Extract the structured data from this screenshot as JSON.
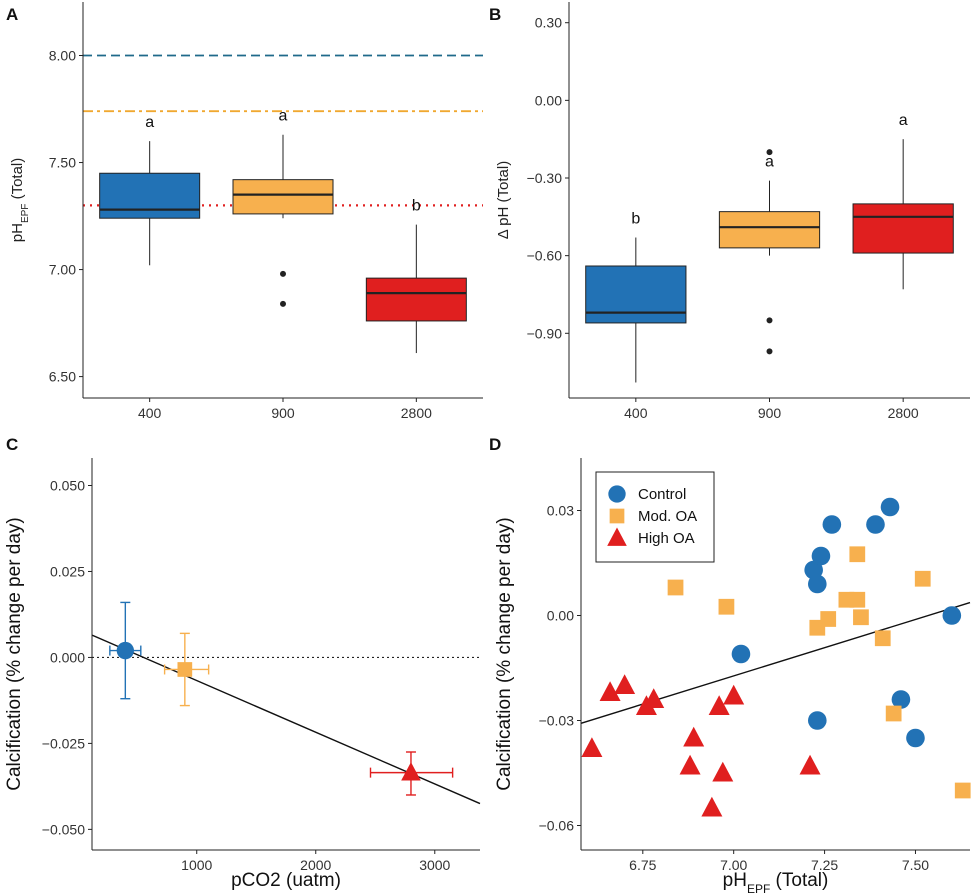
{
  "colors": {
    "control": "#2272b5",
    "mod_oa": "#f7b04e",
    "high_oa": "#e01f1f",
    "ambient_line": "#1f6a8a",
    "mod_line": "#f0a830",
    "high_line": "#e02020"
  },
  "chart_data": [
    {
      "panel": "A",
      "type": "box",
      "ylabel": "pH",
      "ylabel_sub": "EPF",
      "ylabel_suffix": " (Total)",
      "ylim": [
        6.4,
        8.25
      ],
      "yticks": [
        6.5,
        7.0,
        7.5,
        8.0
      ],
      "ytick_labels": [
        "6.50",
        "7.00",
        "7.50",
        "8.00"
      ],
      "categories": [
        "400",
        "900",
        "2800"
      ],
      "boxes": [
        {
          "cat": "400",
          "q1": 7.24,
          "median": 7.28,
          "q3": 7.45,
          "whisker_low": 7.02,
          "whisker_high": 7.6,
          "outliers": [],
          "color": "control",
          "letter": "a"
        },
        {
          "cat": "900",
          "q1": 7.26,
          "median": 7.35,
          "q3": 7.42,
          "whisker_low": 7.24,
          "whisker_high": 7.63,
          "outliers": [
            6.98,
            6.84
          ],
          "color": "mod_oa",
          "letter": "a"
        },
        {
          "cat": "2800",
          "q1": 6.76,
          "median": 6.89,
          "q3": 6.96,
          "whisker_low": 6.61,
          "whisker_high": 7.21,
          "outliers": [],
          "color": "high_oa",
          "letter": "b"
        }
      ],
      "reference_lines": [
        {
          "y": 8.0,
          "style": "dashed",
          "color": "ambient_line"
        },
        {
          "y": 7.74,
          "style": "dashdot",
          "color": "mod_line"
        },
        {
          "y": 7.3,
          "style": "dotted",
          "color": "high_line"
        }
      ]
    },
    {
      "panel": "B",
      "type": "box",
      "ylabel": "Δ pH (Total)",
      "ylim": [
        -1.15,
        0.38
      ],
      "yticks": [
        -0.9,
        -0.6,
        -0.3,
        0.0,
        0.3
      ],
      "ytick_labels": [
        "−0.90",
        "−0.60",
        "−0.30",
        "0.00",
        "0.30"
      ],
      "categories": [
        "400",
        "900",
        "2800"
      ],
      "boxes": [
        {
          "cat": "400",
          "q1": -0.86,
          "median": -0.82,
          "q3": -0.64,
          "whisker_low": -1.09,
          "whisker_high": -0.53,
          "outliers": [],
          "color": "control",
          "letter": "b"
        },
        {
          "cat": "900",
          "q1": -0.57,
          "median": -0.49,
          "q3": -0.43,
          "whisker_low": -0.6,
          "whisker_high": -0.31,
          "outliers": [
            -0.2,
            -0.85,
            -0.97
          ],
          "color": "mod_oa",
          "letter": "a"
        },
        {
          "cat": "2800",
          "q1": -0.59,
          "median": -0.45,
          "q3": -0.4,
          "whisker_low": -0.73,
          "whisker_high": -0.15,
          "outliers": [],
          "color": "high_oa",
          "letter": "a"
        }
      ]
    },
    {
      "panel": "C",
      "type": "scatter",
      "xlabel": "pCO2 (uatm)",
      "ylabel": "Calcification (% change per day)",
      "xlim": [
        120,
        3380
      ],
      "ylim": [
        -0.056,
        0.058
      ],
      "xticks": [
        1000,
        2000,
        3000
      ],
      "xtick_labels": [
        "1000",
        "2000",
        "3000"
      ],
      "yticks": [
        -0.05,
        -0.025,
        0.0,
        0.025,
        0.05
      ],
      "ytick_labels": [
        "−0.050",
        "−0.025",
        "0.000",
        "0.025",
        "0.050"
      ],
      "points": [
        {
          "x": 400,
          "y": 0.002,
          "xerr_low": 270,
          "xerr_high": 530,
          "yerr_low": -0.012,
          "yerr_high": 0.016,
          "color": "control",
          "shape": "circle"
        },
        {
          "x": 900,
          "y": -0.0035,
          "xerr_low": 730,
          "xerr_high": 1100,
          "yerr_low": -0.014,
          "yerr_high": 0.007,
          "color": "mod_oa",
          "shape": "square"
        },
        {
          "x": 2800,
          "y": -0.0335,
          "xerr_low": 2460,
          "xerr_high": 3150,
          "yerr_low": -0.04,
          "yerr_high": -0.0275,
          "color": "high_oa",
          "shape": "triangle"
        }
      ],
      "hline_y": 0.0,
      "fit_line": [
        {
          "x": 120,
          "y": 0.0065
        },
        {
          "x": 3380,
          "y": -0.0425
        }
      ]
    },
    {
      "panel": "D",
      "type": "scatter",
      "xlabel": "pH",
      "xlabel_sub": "EPF",
      "xlabel_suffix": " (Total)",
      "ylabel": "Calcification (% change per day)",
      "xlim": [
        6.58,
        7.65
      ],
      "ylim": [
        -0.067,
        0.045
      ],
      "xticks": [
        6.75,
        7.0,
        7.25,
        7.5
      ],
      "xtick_labels": [
        "6.75",
        "7.00",
        "7.25",
        "7.50"
      ],
      "yticks": [
        -0.06,
        -0.03,
        0.0,
        0.03
      ],
      "ytick_labels": [
        "−0.06",
        "−0.03",
        "0.00",
        "0.03"
      ],
      "legend": [
        {
          "label": "Control",
          "color": "control",
          "shape": "circle"
        },
        {
          "label": "Mod. OA",
          "color": "mod_oa",
          "shape": "square"
        },
        {
          "label": "High OA",
          "color": "high_oa",
          "shape": "triangle"
        }
      ],
      "series": [
        {
          "name": "Control",
          "color": "control",
          "shape": "circle",
          "points": [
            [
              7.02,
              -0.011
            ],
            [
              7.22,
              0.013
            ],
            [
              7.23,
              0.009
            ],
            [
              7.24,
              0.017
            ],
            [
              7.27,
              0.026
            ],
            [
              7.39,
              0.026
            ],
            [
              7.43,
              0.031
            ],
            [
              7.6,
              0.0
            ],
            [
              7.46,
              -0.024
            ],
            [
              7.5,
              -0.035
            ],
            [
              7.23,
              -0.03
            ]
          ]
        },
        {
          "name": "Mod. OA",
          "color": "mod_oa",
          "shape": "square",
          "points": [
            [
              6.84,
              0.008
            ],
            [
              6.98,
              0.0025
            ],
            [
              7.23,
              -0.0035
            ],
            [
              7.26,
              -0.001
            ],
            [
              7.31,
              0.0045
            ],
            [
              7.34,
              0.0045
            ],
            [
              7.34,
              0.0175
            ],
            [
              7.35,
              -0.0005
            ],
            [
              7.41,
              -0.0065
            ],
            [
              7.44,
              -0.028
            ],
            [
              7.52,
              0.0105
            ],
            [
              7.63,
              -0.05
            ]
          ]
        },
        {
          "name": "High OA",
          "color": "high_oa",
          "shape": "triangle",
          "points": [
            [
              6.61,
              -0.038
            ],
            [
              6.66,
              -0.022
            ],
            [
              6.7,
              -0.02
            ],
            [
              6.76,
              -0.026
            ],
            [
              6.78,
              -0.024
            ],
            [
              6.89,
              -0.035
            ],
            [
              6.88,
              -0.043
            ],
            [
              6.94,
              -0.055
            ],
            [
              6.96,
              -0.026
            ],
            [
              6.97,
              -0.045
            ],
            [
              7.0,
              -0.023
            ],
            [
              7.21,
              -0.043
            ]
          ]
        }
      ],
      "fit_line": [
        {
          "x": 6.58,
          "y": -0.0308
        },
        {
          "x": 7.65,
          "y": 0.0037
        }
      ]
    }
  ]
}
